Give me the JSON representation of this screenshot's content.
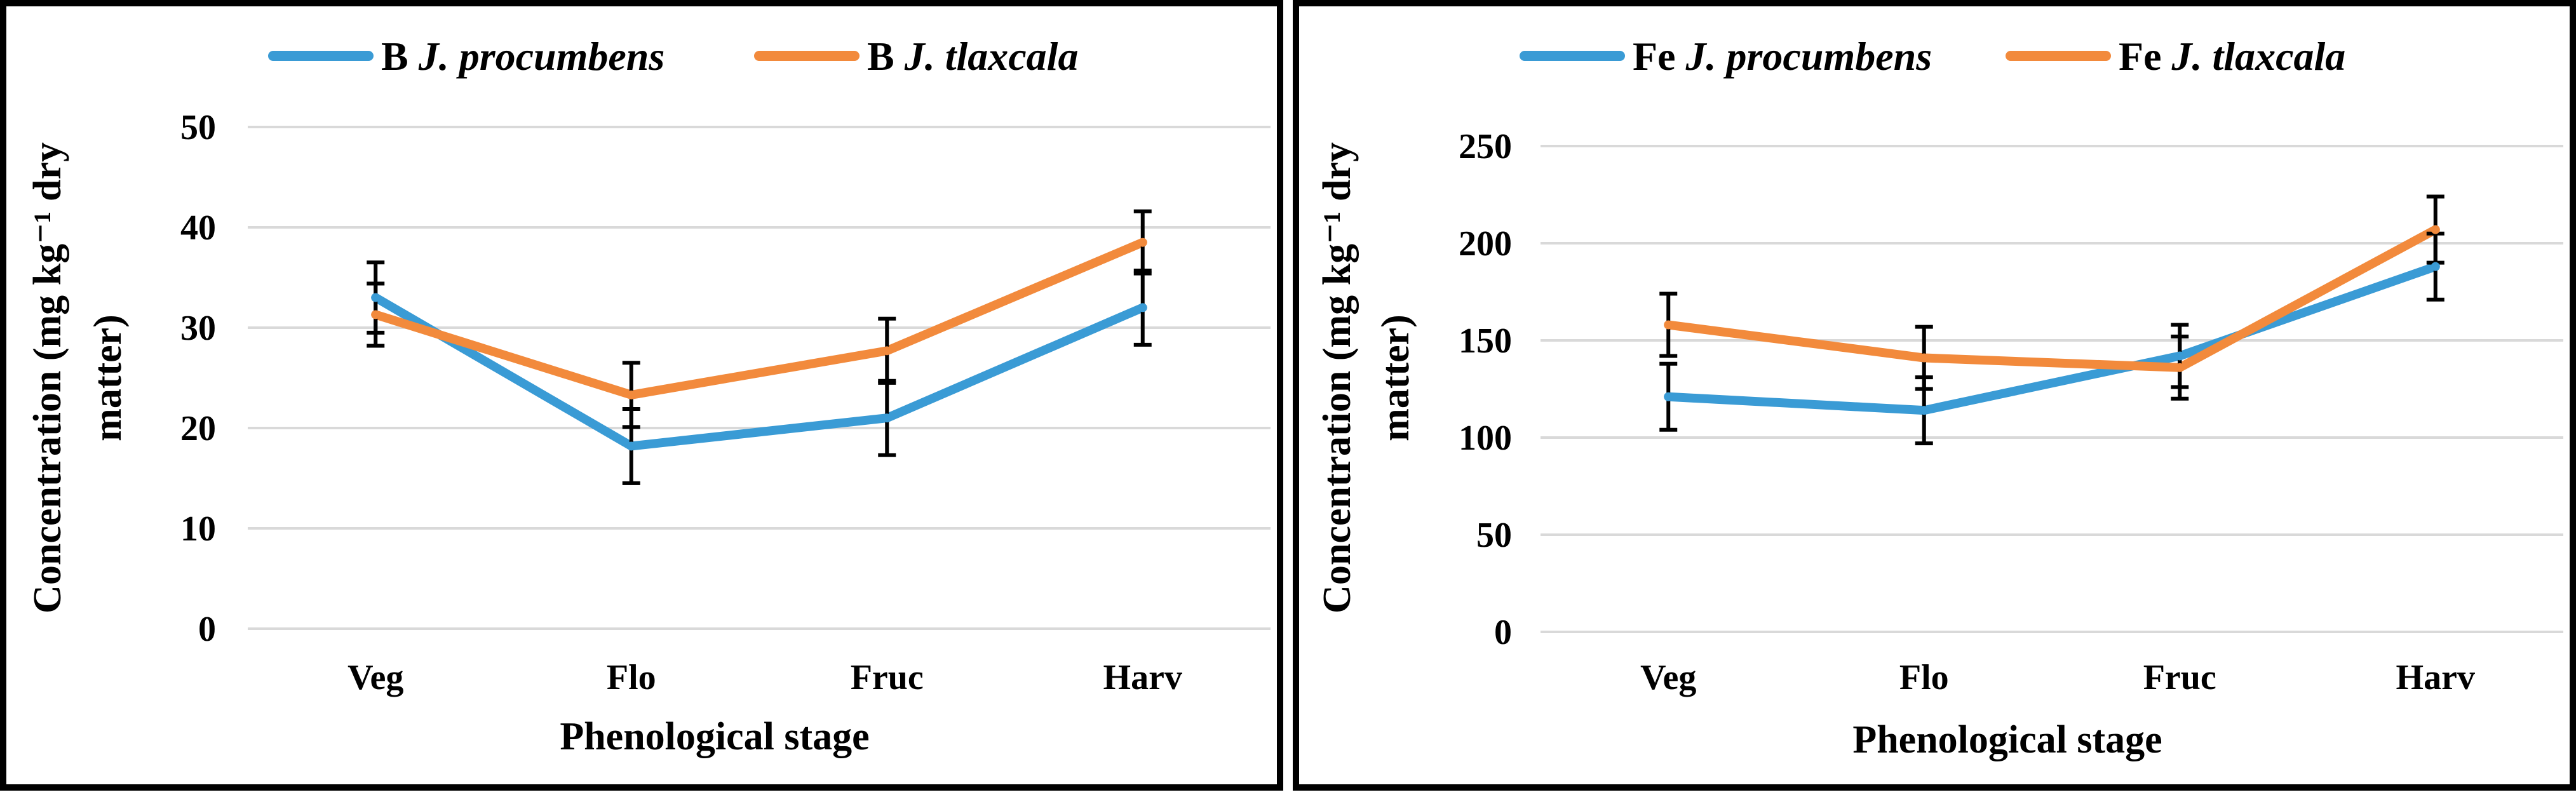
{
  "chart_data": [
    {
      "type": "line",
      "categories": [
        "Veg",
        "Flo",
        "Fruc",
        "Harv"
      ],
      "xlabel": "Phenological stage",
      "ylabel_line1": "Concentration (mg kg⁻¹ dry",
      "ylabel_line2": "matter)",
      "ylim": [
        0,
        50
      ],
      "yticks": [
        0,
        10,
        20,
        30,
        40,
        50
      ],
      "series": [
        {
          "name_prefix": "B",
          "name_species": "J. procumbens",
          "color": "#3a9bd5",
          "values": [
            33,
            18.2,
            21,
            32
          ],
          "errors": [
            3.5,
            3.7,
            3.7,
            3.7
          ]
        },
        {
          "name_prefix": "B",
          "name_species": "J. tlaxcala",
          "color": "#f28a3c",
          "values": [
            31.3,
            23.3,
            27.7,
            38.5
          ],
          "errors": [
            3.1,
            3.2,
            3.2,
            3.1
          ]
        }
      ]
    },
    {
      "type": "line",
      "categories": [
        "Veg",
        "Flo",
        "Fruc",
        "Harv"
      ],
      "xlabel": "Phenological stage",
      "ylabel_line1": "Concentration (mg kg⁻¹ dry",
      "ylabel_line2": "matter)",
      "ylim": [
        0,
        250
      ],
      "yticks": [
        0,
        50,
        100,
        150,
        200,
        250
      ],
      "series": [
        {
          "name_prefix": "Fe",
          "name_species": "J. procumbens",
          "color": "#3a9bd5",
          "values": [
            121,
            114,
            142,
            188
          ],
          "errors": [
            17,
            17,
            16,
            17
          ]
        },
        {
          "name_prefix": "Fe",
          "name_species": "J. tlaxcala",
          "color": "#f28a3c",
          "values": [
            158,
            141,
            136,
            207
          ],
          "errors": [
            16,
            16,
            16,
            17
          ]
        }
      ]
    }
  ]
}
